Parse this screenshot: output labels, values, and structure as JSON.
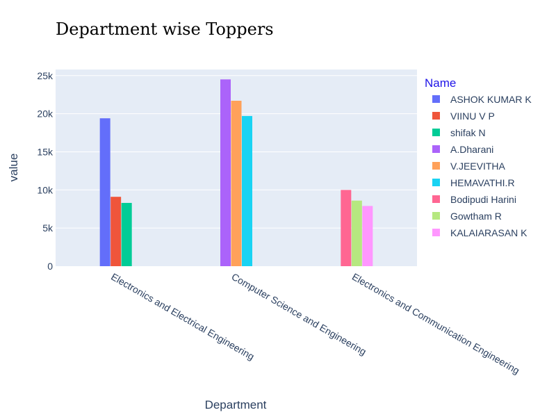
{
  "chart_data": {
    "type": "bar",
    "title": "Department wise Toppers",
    "xlabel": "Department",
    "ylabel": "value",
    "ylim": [
      0,
      25800
    ],
    "yticks": [
      {
        "value": 0,
        "label": "0"
      },
      {
        "value": 5000,
        "label": "5k"
      },
      {
        "value": 10000,
        "label": "10k"
      },
      {
        "value": 15000,
        "label": "15k"
      },
      {
        "value": 20000,
        "label": "20k"
      },
      {
        "value": 25000,
        "label": "25k"
      }
    ],
    "grid": true,
    "legend_title": "Name",
    "legend_position": "right",
    "categories": [
      "Electronics and Electrical Engineering",
      "Computer Science and Engineering",
      "Electronics and Communication Engineering"
    ],
    "series": [
      {
        "name": "ASHOK KUMAR K",
        "color": "#636efa",
        "category": "Electronics and Electrical Engineering",
        "value": 19400
      },
      {
        "name": "VIINU V P",
        "color": "#ef553b",
        "category": "Electronics and Electrical Engineering",
        "value": 9100
      },
      {
        "name": "shifak N",
        "color": "#00cc96",
        "category": "Electronics and Electrical Engineering",
        "value": 8300
      },
      {
        "name": "A.Dharani",
        "color": "#ab63fa",
        "category": "Computer Science and Engineering",
        "value": 24500
      },
      {
        "name": "V.JEEVITHA",
        "color": "#ffa15a",
        "category": "Computer Science and Engineering",
        "value": 21700
      },
      {
        "name": "HEMAVATHI.R",
        "color": "#19d3f3",
        "category": "Computer Science and Engineering",
        "value": 19700
      },
      {
        "name": "Bodipudi Harini",
        "color": "#ff6692",
        "category": "Electronics and Communication Engineering",
        "value": 10000
      },
      {
        "name": "Gowtham R",
        "color": "#b6e880",
        "category": "Electronics and Communication Engineering",
        "value": 8600
      },
      {
        "name": "KALAIARASAN K",
        "color": "#ff97ff",
        "category": "Electronics and Communication Engineering",
        "value": 7900
      }
    ],
    "colors": {
      "plot_background": "#e5ecf6",
      "gridline": "#ffffff",
      "text": "#2a3f5f",
      "legend_title": "#1f14e8"
    }
  }
}
